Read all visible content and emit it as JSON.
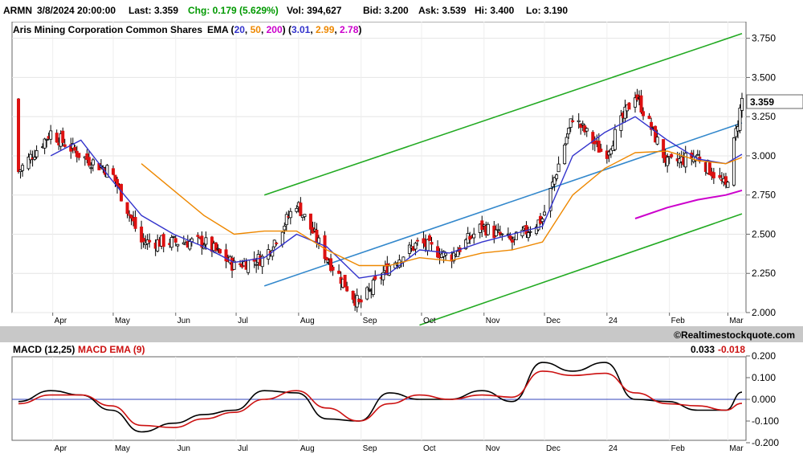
{
  "header": {
    "symbol": "ARMN",
    "datetime": "3/8/2024 20:00:00",
    "last": "Last: 3.359",
    "chg": "Chg: 0.179 (5.629%)",
    "vol": "Vol: 394,627",
    "bid": "Bid: 3.200",
    "ask": "Ask: 3.539",
    "hi": "Hi: 3.400",
    "lo": "Lo: 3.190"
  },
  "main_panel": {
    "title": "Aris Mining Corporation Common Shares",
    "ema_prefix": "EMA (",
    "ema_periods": [
      "20",
      "50",
      "200"
    ],
    "ema_values": [
      "3.01",
      "2.99",
      "2.78"
    ],
    "last_price_label": "3.359",
    "watermark": "©Realtimestockquote.com"
  },
  "macd_panel": {
    "title": "MACD (12,25)",
    "signal_title": "MACD EMA (9)",
    "macd_value": "0.033",
    "signal_value": "-0.018"
  },
  "colors": {
    "ema20": "#3333cc",
    "ema50": "#ee8800",
    "ema200": "#cc00cc",
    "channel": "#22aa22",
    "regression": "#3388cc",
    "up_candle": "#ffffff",
    "down_candle": "#dd1111",
    "macd": "#000000",
    "signal": "#cc1111",
    "chg": "#009900"
  },
  "chart_data": [
    {
      "type": "candlestick",
      "title": "Aris Mining Corporation Common Shares",
      "x_ticks": [
        "Apr",
        "May",
        "Jun",
        "Jul",
        "Aug",
        "Sep",
        "Oct",
        "Nov",
        "Dec",
        "24",
        "Feb",
        "Mar"
      ],
      "y_ticks": [
        2.0,
        2.25,
        2.5,
        2.75,
        3.0,
        3.25,
        3.5,
        3.75
      ],
      "ylim": [
        2.0,
        3.82
      ],
      "anchors": {
        "x": [
          "Mar 15",
          "Mar 31",
          "Apr 15",
          "Apr 30",
          "May 15",
          "May 31",
          "Jun 15",
          "Jun 30",
          "Jul 15",
          "Jul 31",
          "Aug 15",
          "Aug 31",
          "Sep 15",
          "Sep 30",
          "Oct 15",
          "Oct 31",
          "Nov 15",
          "Nov 30",
          "Dec 15",
          "Dec 31",
          "Jan 15",
          "Jan 31",
          "Feb 15",
          "Feb 29",
          "Mar 8"
        ],
        "close": [
          2.9,
          3.15,
          3.0,
          2.9,
          2.45,
          2.45,
          2.45,
          2.3,
          2.35,
          2.7,
          2.35,
          2.05,
          2.3,
          2.45,
          2.35,
          2.55,
          2.45,
          2.6,
          3.25,
          3.0,
          3.4,
          2.95,
          3.0,
          2.8,
          3.36
        ]
      },
      "emas": [
        {
          "name": "EMA 20",
          "x": [
            "Mar 31",
            "Apr 15",
            "Apr 30",
            "May 15",
            "May 31",
            "Jun 15",
            "Jun 30",
            "Jul 15",
            "Jul 31",
            "Aug 15",
            "Aug 31",
            "Sep 15",
            "Sep 30",
            "Oct 15",
            "Oct 31",
            "Nov 15",
            "Nov 30",
            "Dec 15",
            "Dec 31",
            "Jan 15",
            "Jan 31",
            "Feb 15",
            "Feb 29",
            "Mar 8"
          ],
          "y": [
            3.0,
            3.1,
            2.85,
            2.62,
            2.5,
            2.42,
            2.32,
            2.35,
            2.5,
            2.42,
            2.22,
            2.25,
            2.4,
            2.38,
            2.45,
            2.5,
            2.55,
            3.0,
            3.15,
            3.25,
            3.1,
            2.98,
            2.95,
            3.01
          ]
        },
        {
          "name": "EMA 50",
          "x": [
            "May 15",
            "May 31",
            "Jun 15",
            "Jun 30",
            "Jul 15",
            "Jul 31",
            "Aug 15",
            "Aug 31",
            "Sep 15",
            "Sep 30",
            "Oct 15",
            "Oct 31",
            "Nov 15",
            "Nov 30",
            "Dec 15",
            "Dec 31",
            "Jan 15",
            "Jan 31",
            "Feb 15",
            "Feb 29",
            "Mar 8"
          ],
          "y": [
            2.95,
            2.78,
            2.62,
            2.5,
            2.52,
            2.52,
            2.4,
            2.3,
            2.3,
            2.35,
            2.33,
            2.38,
            2.4,
            2.45,
            2.75,
            2.92,
            3.02,
            3.03,
            2.97,
            2.95,
            2.99
          ]
        },
        {
          "name": "EMA 200",
          "x": [
            "Jan 15",
            "Jan 31",
            "Feb 15",
            "Feb 29",
            "Mar 8"
          ],
          "y": [
            2.6,
            2.67,
            2.72,
            2.75,
            2.78
          ]
        }
      ],
      "channel": {
        "upper": {
          "x": [
            "Jul 15",
            "Mar 8"
          ],
          "y": [
            2.75,
            3.78
          ]
        },
        "middle": {
          "x": [
            "Jul 15",
            "Mar 8"
          ],
          "y": [
            2.17,
            3.21
          ]
        },
        "lower": {
          "x": [
            "Sep 30",
            "Mar 8"
          ],
          "y": [
            1.92,
            2.63
          ]
        }
      }
    },
    {
      "type": "line",
      "title": "MACD (12,25)",
      "y_ticks": [
        0.2,
        0.1,
        0.0,
        -0.1,
        -0.2
      ],
      "ylim": [
        -0.2,
        0.2
      ],
      "series": [
        {
          "name": "MACD (12,25)",
          "x": [
            "Mar 15",
            "Mar 31",
            "Apr 15",
            "Apr 30",
            "May 15",
            "May 31",
            "Jun 15",
            "Jun 30",
            "Jul 15",
            "Jul 31",
            "Aug 15",
            "Aug 31",
            "Sep 15",
            "Sep 30",
            "Oct 15",
            "Oct 31",
            "Nov 15",
            "Nov 30",
            "Dec 15",
            "Dec 31",
            "Jan 15",
            "Jan 31",
            "Feb 15",
            "Feb 29",
            "Mar 8"
          ],
          "y": [
            -0.01,
            0.04,
            0.02,
            -0.05,
            -0.15,
            -0.11,
            -0.07,
            -0.05,
            0.04,
            0.03,
            -0.09,
            -0.1,
            0.03,
            0.0,
            0.0,
            0.04,
            -0.01,
            0.17,
            0.13,
            0.17,
            0.0,
            -0.01,
            -0.05,
            -0.05,
            0.033
          ]
        },
        {
          "name": "MACD EMA (9)",
          "x": [
            "Mar 15",
            "Mar 31",
            "Apr 15",
            "Apr 30",
            "May 15",
            "May 31",
            "Jun 15",
            "Jun 30",
            "Jul 15",
            "Jul 31",
            "Aug 15",
            "Aug 31",
            "Sep 15",
            "Sep 30",
            "Oct 15",
            "Oct 31",
            "Nov 15",
            "Nov 30",
            "Dec 15",
            "Dec 31",
            "Jan 15",
            "Jan 31",
            "Feb 15",
            "Feb 29",
            "Mar 8"
          ],
          "y": [
            -0.02,
            0.02,
            0.02,
            -0.03,
            -0.12,
            -0.13,
            -0.09,
            -0.06,
            0.0,
            0.04,
            -0.04,
            -0.1,
            -0.02,
            0.02,
            0.0,
            0.02,
            0.01,
            0.13,
            0.11,
            0.12,
            0.03,
            -0.02,
            -0.03,
            -0.05,
            -0.018
          ]
        }
      ]
    }
  ]
}
